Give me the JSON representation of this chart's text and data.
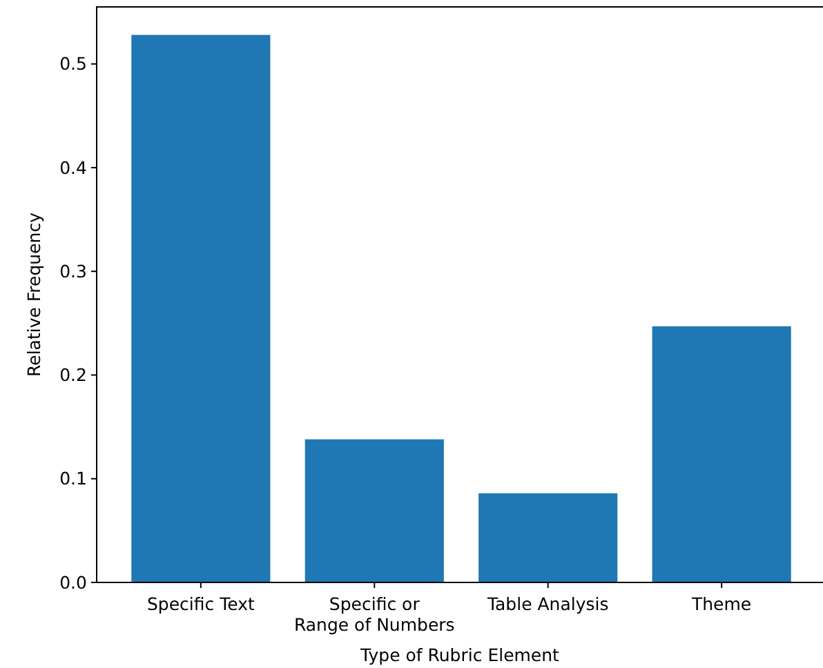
{
  "chart_data": {
    "type": "bar",
    "xlabel": "Type of Rubric Element",
    "ylabel": "Relative Frequency",
    "categories": [
      "Specific Text",
      "Specific or\nRange of Numbers",
      "Table Analysis",
      "Theme"
    ],
    "values": [
      0.528,
      0.138,
      0.086,
      0.247
    ],
    "color": "#1f77b4",
    "ylim": [
      0,
      0.555
    ],
    "yticks": [
      {
        "value": 0,
        "label": "0.0"
      },
      {
        "value": 0.1,
        "label": "0.1"
      },
      {
        "value": 0.2,
        "label": "0.2"
      },
      {
        "value": 0.3,
        "label": "0.3"
      },
      {
        "value": 0.4,
        "label": "0.4"
      },
      {
        "value": 0.5,
        "label": "0.5"
      }
    ],
    "grid": false
  }
}
